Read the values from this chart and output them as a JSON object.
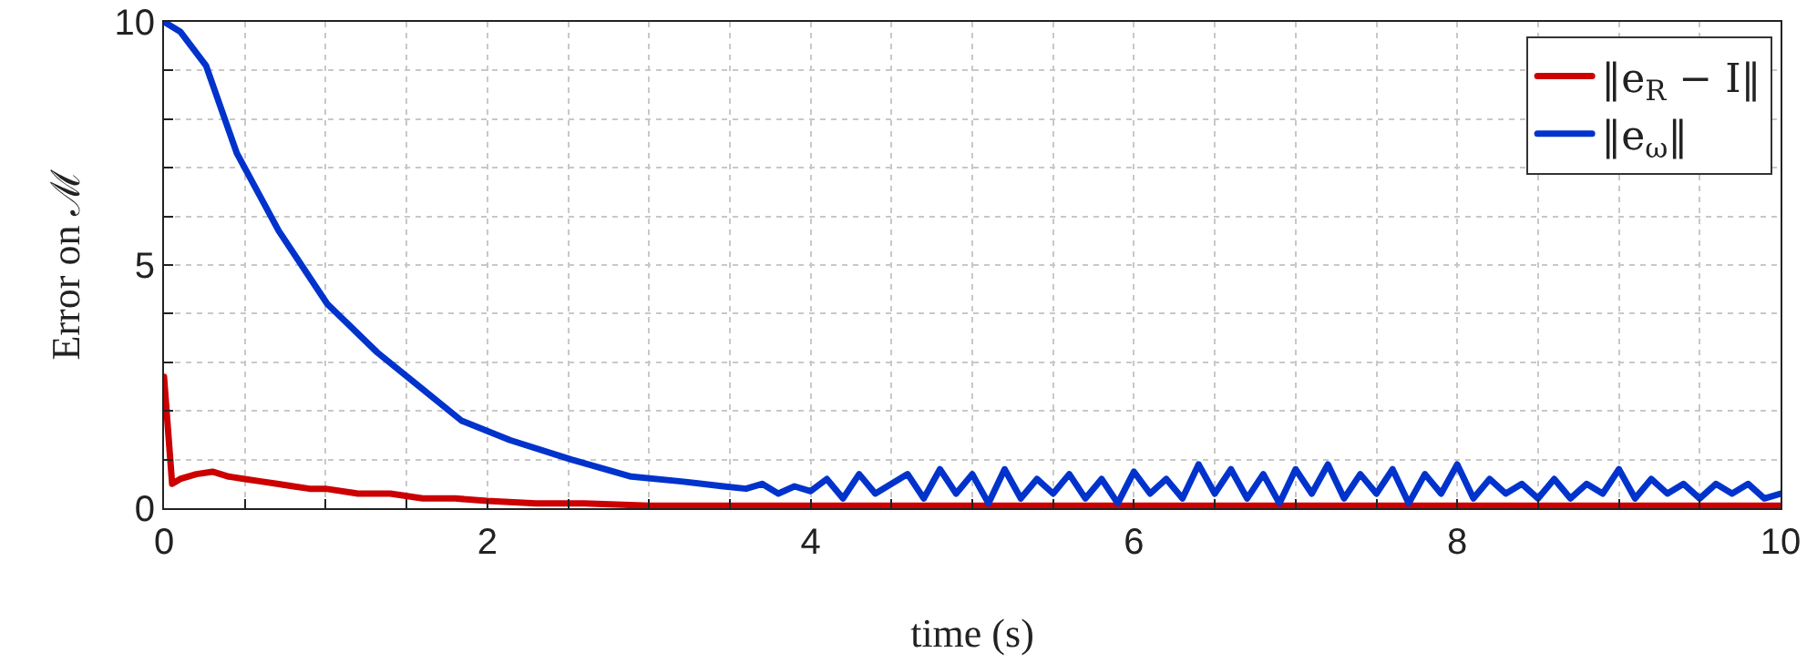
{
  "chart_data": {
    "type": "line",
    "xlabel": "time (s)",
    "ylabel": "Error on ℳ",
    "xlim": [
      0,
      10
    ],
    "ylim": [
      0,
      10
    ],
    "xticks": [
      0,
      {
        "value": 0.5,
        "label": null
      },
      2,
      {
        "value": 1,
        "label": null
      },
      {
        "value": 1.5,
        "label": null
      },
      {
        "value": 2.5,
        "label": null
      },
      {
        "value": 3,
        "label": null
      },
      {
        "value": 3.5,
        "label": null
      },
      4,
      {
        "value": 4.5,
        "label": null
      },
      {
        "value": 5,
        "label": null
      },
      {
        "value": 5.5,
        "label": null
      },
      6,
      {
        "value": 6.5,
        "label": null
      },
      {
        "value": 7,
        "label": null
      },
      {
        "value": 7.5,
        "label": null
      },
      8,
      {
        "value": 8.5,
        "label": null
      },
      {
        "value": 9,
        "label": null
      },
      {
        "value": 9.5,
        "label": null
      },
      10
    ],
    "yticks": [
      0,
      {
        "value": 1,
        "label": null
      },
      {
        "value": 2,
        "label": null
      },
      {
        "value": 3,
        "label": null
      },
      {
        "value": 4,
        "label": null
      },
      5,
      {
        "value": 6,
        "label": null
      },
      {
        "value": 7,
        "label": null
      },
      {
        "value": 8,
        "label": null
      },
      {
        "value": 9,
        "label": null
      },
      10
    ],
    "grid": true,
    "legend": "top right",
    "line_style": "solid",
    "marker": "none",
    "series": [
      {
        "name": "‖e$_{R}$ − I‖",
        "color": "#cc0000",
        "x": [
          0,
          0.05,
          0.1,
          0.2,
          0.3,
          0.4,
          0.5,
          0.6,
          0.7,
          0.8,
          0.9,
          1.0,
          1.2,
          1.4,
          1.6,
          1.8,
          2.0,
          2.3,
          2.6,
          3.0,
          3.5,
          4,
          4.5,
          5,
          5.5,
          6,
          6.5,
          7,
          7.5,
          8,
          8.5,
          9,
          9.5,
          10
        ],
        "values": [
          2.7,
          0.5,
          0.6,
          0.7,
          0.75,
          0.65,
          0.6,
          0.55,
          0.5,
          0.45,
          0.4,
          0.4,
          0.3,
          0.3,
          0.2,
          0.2,
          0.15,
          0.1,
          0.1,
          0.05,
          0.05,
          0.05,
          0.05,
          0.05,
          0.05,
          0.05,
          0.05,
          0.05,
          0.05,
          0.05,
          0.05,
          0.05,
          0.05,
          0.05
        ]
      },
      {
        "name": "‖e$_{ω}$‖",
        "color": "#0033cc",
        "x": [
          0,
          0.1,
          0.26,
          0.45,
          0.71,
          1.01,
          1.32,
          1.58,
          1.84,
          2.14,
          2.52,
          2.89,
          3.2,
          3.46,
          3.6,
          3.7,
          3.8,
          3.9,
          4.0,
          4.1,
          4.2,
          4.3,
          4.4,
          4.5,
          4.6,
          4.7,
          4.8,
          4.9,
          5.0,
          5.1,
          5.2,
          5.3,
          5.4,
          5.5,
          5.6,
          5.7,
          5.8,
          5.9,
          6.0,
          6.1,
          6.2,
          6.3,
          6.4,
          6.5,
          6.6,
          6.7,
          6.8,
          6.9,
          7.0,
          7.1,
          7.2,
          7.3,
          7.4,
          7.5,
          7.6,
          7.7,
          7.8,
          7.9,
          8.0,
          8.1,
          8.2,
          8.3,
          8.4,
          8.5,
          8.6,
          8.7,
          8.8,
          8.9,
          9.0,
          9.1,
          9.2,
          9.3,
          9.4,
          9.5,
          9.6,
          9.7,
          9.8,
          9.9,
          10
        ],
        "values": [
          10,
          9.8,
          9.1,
          7.3,
          5.7,
          4.2,
          3.2,
          2.5,
          1.8,
          1.4,
          1.0,
          0.65,
          0.55,
          0.45,
          0.4,
          0.5,
          0.3,
          0.45,
          0.35,
          0.6,
          0.2,
          0.7,
          0.3,
          0.5,
          0.7,
          0.2,
          0.8,
          0.3,
          0.7,
          0.1,
          0.8,
          0.2,
          0.6,
          0.3,
          0.7,
          0.2,
          0.6,
          0.1,
          0.75,
          0.3,
          0.6,
          0.2,
          0.9,
          0.3,
          0.8,
          0.2,
          0.7,
          0.1,
          0.8,
          0.3,
          0.9,
          0.2,
          0.7,
          0.3,
          0.8,
          0.1,
          0.7,
          0.3,
          0.9,
          0.2,
          0.6,
          0.3,
          0.5,
          0.2,
          0.6,
          0.2,
          0.5,
          0.3,
          0.8,
          0.2,
          0.6,
          0.3,
          0.5,
          0.2,
          0.5,
          0.3,
          0.5,
          0.2,
          0.3
        ]
      }
    ]
  }
}
